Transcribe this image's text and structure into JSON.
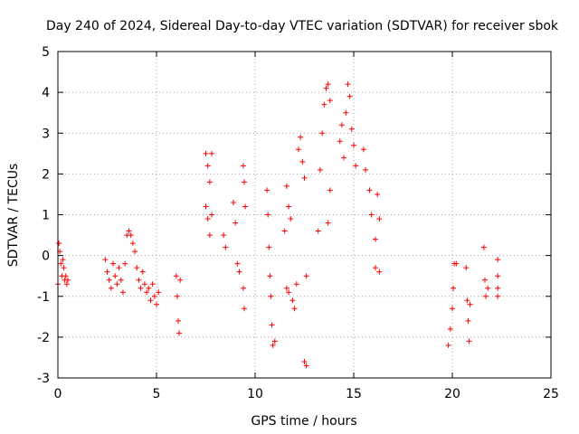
{
  "chart_data": {
    "type": "scatter",
    "title": "Day 240 of 2024, Sidereal Day-to-day VTEC variation (SDTVAR) for receiver sbok",
    "xlabel": "GPS time / hours",
    "ylabel": "SDTVAR / TECUs",
    "xlim": [
      0,
      25
    ],
    "ylim": [
      -3,
      5
    ],
    "xticks": [
      "0",
      "5",
      "10",
      "15",
      "20",
      "25"
    ],
    "yticks": [
      "-3",
      "-2",
      "-1",
      "0",
      "1",
      "2",
      "3",
      "4",
      "5"
    ],
    "grid": true,
    "marker": "+",
    "marker_color": "#ff0000",
    "series": [
      {
        "name": "SDTVAR",
        "points": [
          [
            0.0,
            -0.7
          ],
          [
            0.05,
            0.3
          ],
          [
            0.1,
            0.1
          ],
          [
            0.15,
            -0.2
          ],
          [
            0.2,
            -0.5
          ],
          [
            0.25,
            -0.1
          ],
          [
            0.3,
            -0.3
          ],
          [
            0.35,
            -0.6
          ],
          [
            0.4,
            -0.5
          ],
          [
            0.45,
            -0.7
          ],
          [
            0.5,
            -0.6
          ],
          [
            2.4,
            -0.1
          ],
          [
            2.5,
            -0.4
          ],
          [
            2.6,
            -0.6
          ],
          [
            2.7,
            -0.8
          ],
          [
            2.8,
            -0.2
          ],
          [
            2.9,
            -0.5
          ],
          [
            3.0,
            -0.7
          ],
          [
            3.1,
            -0.3
          ],
          [
            3.2,
            -0.6
          ],
          [
            3.3,
            -0.9
          ],
          [
            3.4,
            -0.2
          ],
          [
            3.5,
            0.5
          ],
          [
            3.6,
            0.6
          ],
          [
            3.7,
            0.5
          ],
          [
            3.8,
            0.3
          ],
          [
            3.9,
            0.1
          ],
          [
            4.0,
            -0.3
          ],
          [
            4.1,
            -0.6
          ],
          [
            4.2,
            -0.8
          ],
          [
            4.3,
            -0.4
          ],
          [
            4.4,
            -0.7
          ],
          [
            4.5,
            -0.9
          ],
          [
            4.6,
            -0.8
          ],
          [
            4.7,
            -1.1
          ],
          [
            4.8,
            -0.7
          ],
          [
            4.9,
            -1.0
          ],
          [
            5.0,
            -1.2
          ],
          [
            5.1,
            -0.9
          ],
          [
            6.0,
            -0.5
          ],
          [
            6.05,
            -1.0
          ],
          [
            6.1,
            -1.6
          ],
          [
            6.15,
            -1.9
          ],
          [
            6.2,
            -0.6
          ],
          [
            7.5,
            2.5
          ],
          [
            7.6,
            2.2
          ],
          [
            7.7,
            1.8
          ],
          [
            7.8,
            2.5
          ],
          [
            7.5,
            1.2
          ],
          [
            7.6,
            0.9
          ],
          [
            7.7,
            0.5
          ],
          [
            7.8,
            1.0
          ],
          [
            8.4,
            0.5
          ],
          [
            8.5,
            0.2
          ],
          [
            8.9,
            1.3
          ],
          [
            9.0,
            0.8
          ],
          [
            9.1,
            -0.2
          ],
          [
            9.2,
            -0.4
          ],
          [
            9.4,
            2.2
          ],
          [
            9.45,
            1.8
          ],
          [
            9.5,
            1.2
          ],
          [
            9.4,
            -0.8
          ],
          [
            9.45,
            -1.3
          ],
          [
            10.6,
            1.6
          ],
          [
            10.65,
            1.0
          ],
          [
            10.7,
            0.2
          ],
          [
            10.75,
            -0.5
          ],
          [
            10.8,
            -1.0
          ],
          [
            10.85,
            -1.7
          ],
          [
            10.9,
            -2.2
          ],
          [
            11.0,
            -2.1
          ],
          [
            11.5,
            0.6
          ],
          [
            11.6,
            1.7
          ],
          [
            11.7,
            1.2
          ],
          [
            11.8,
            0.9
          ],
          [
            11.6,
            -0.8
          ],
          [
            11.7,
            -0.9
          ],
          [
            11.9,
            -1.1
          ],
          [
            12.0,
            -1.3
          ],
          [
            12.1,
            -0.7
          ],
          [
            12.2,
            2.6
          ],
          [
            12.3,
            2.9
          ],
          [
            12.4,
            2.3
          ],
          [
            12.5,
            1.9
          ],
          [
            12.6,
            -0.5
          ],
          [
            12.5,
            -2.6
          ],
          [
            12.6,
            -2.7
          ],
          [
            13.2,
            0.6
          ],
          [
            13.3,
            2.1
          ],
          [
            13.4,
            3.0
          ],
          [
            13.5,
            3.7
          ],
          [
            13.6,
            4.1
          ],
          [
            13.7,
            4.2
          ],
          [
            13.8,
            3.8
          ],
          [
            13.7,
            0.8
          ],
          [
            13.8,
            1.6
          ],
          [
            14.3,
            2.8
          ],
          [
            14.4,
            3.2
          ],
          [
            14.5,
            2.4
          ],
          [
            14.6,
            3.5
          ],
          [
            14.7,
            4.2
          ],
          [
            14.8,
            3.9
          ],
          [
            14.9,
            3.1
          ],
          [
            15.0,
            2.7
          ],
          [
            15.1,
            2.2
          ],
          [
            15.5,
            2.6
          ],
          [
            15.6,
            2.1
          ],
          [
            15.8,
            1.6
          ],
          [
            15.9,
            1.0
          ],
          [
            16.1,
            0.4
          ],
          [
            16.2,
            1.5
          ],
          [
            16.3,
            0.9
          ],
          [
            16.1,
            -0.3
          ],
          [
            16.3,
            -0.4
          ],
          [
            19.8,
            -2.2
          ],
          [
            19.9,
            -1.8
          ],
          [
            20.0,
            -1.3
          ],
          [
            20.05,
            -0.8
          ],
          [
            20.1,
            -0.2
          ],
          [
            20.2,
            -0.2
          ],
          [
            20.7,
            -0.3
          ],
          [
            20.75,
            -1.1
          ],
          [
            20.8,
            -1.6
          ],
          [
            20.85,
            -2.1
          ],
          [
            20.9,
            -1.2
          ],
          [
            21.6,
            0.2
          ],
          [
            21.65,
            -0.6
          ],
          [
            21.7,
            -1.0
          ],
          [
            21.8,
            -0.8
          ],
          [
            22.3,
            -0.1
          ],
          [
            22.3,
            -0.5
          ],
          [
            22.3,
            -0.8
          ],
          [
            22.3,
            -1.0
          ]
        ]
      }
    ]
  }
}
